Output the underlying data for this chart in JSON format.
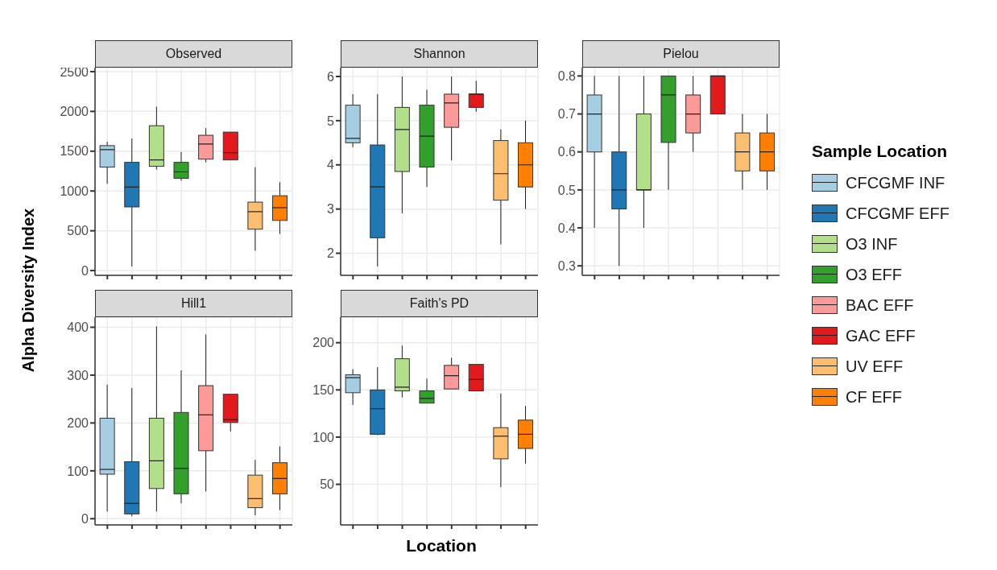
{
  "chart_data": [
    {
      "type": "box",
      "title": "Observed",
      "ylabel": "Alpha Diversity Index",
      "legend": "right",
      "legend_title": "Sample Location",
      "grid": true,
      "categories": [
        null,
        null,
        null,
        null,
        null,
        null,
        null,
        null
      ],
      "ylim": [
        -60,
        2550
      ],
      "yticks": [
        0,
        500,
        1000,
        1500,
        2000,
        2500
      ],
      "series": [
        {
          "name": "CFCGMF INF",
          "color": "#a6cee3",
          "boxes": [
            {
              "low": 1090,
              "q1": 1300,
              "median": 1520,
              "q3": 1570,
              "high": 1620
            },
            null,
            null,
            null,
            null,
            null,
            null,
            null
          ]
        },
        {
          "name": "CFCGMF EFF",
          "color": "#1f78b4",
          "boxes": [
            null,
            {
              "low": 50,
              "q1": 800,
              "median": 1050,
              "q3": 1360,
              "high": 1660
            },
            null,
            null,
            null,
            null,
            null,
            null
          ]
        },
        {
          "name": "O3 INF",
          "color": "#b2df8a",
          "boxes": [
            null,
            null,
            {
              "low": 1270,
              "q1": 1310,
              "median": 1390,
              "q3": 1820,
              "high": 2060
            },
            null,
            null,
            null,
            null,
            null
          ]
        },
        {
          "name": "O3 EFF",
          "color": "#33a02c",
          "boxes": [
            null,
            null,
            null,
            {
              "low": 1130,
              "q1": 1160,
              "median": 1240,
              "q3": 1360,
              "high": 1490
            },
            null,
            null,
            null,
            null
          ]
        },
        {
          "name": "BAC EFF",
          "color": "#fb9a99",
          "boxes": [
            null,
            null,
            null,
            null,
            {
              "low": 1360,
              "q1": 1400,
              "median": 1590,
              "q3": 1700,
              "high": 1790
            },
            null,
            null,
            null
          ]
        },
        {
          "name": "GAC EFF",
          "color": "#e31a1c",
          "boxes": [
            null,
            null,
            null,
            null,
            null,
            {
              "low": 1390,
              "q1": 1390,
              "median": 1480,
              "q3": 1740,
              "high": 1740
            },
            null,
            null
          ]
        },
        {
          "name": "UV EFF",
          "color": "#fdbf6f",
          "boxes": [
            null,
            null,
            null,
            null,
            null,
            null,
            {
              "low": 250,
              "q1": 520,
              "median": 740,
              "q3": 860,
              "high": 1300
            },
            null
          ]
        },
        {
          "name": "CF EFF",
          "color": "#ff7f00",
          "boxes": [
            null,
            null,
            null,
            null,
            null,
            null,
            null,
            {
              "low": 460,
              "q1": 630,
              "median": 790,
              "q3": 940,
              "high": 1110
            }
          ]
        }
      ]
    },
    {
      "type": "box",
      "title": "Shannon",
      "grid": true,
      "categories": [
        null,
        null,
        null,
        null,
        null,
        null,
        null,
        null
      ],
      "ylim": [
        1.5,
        6.2
      ],
      "yticks": [
        2,
        3,
        4,
        5,
        6
      ],
      "series": [
        {
          "color": "#a6cee3",
          "boxes": [
            {
              "low": 4.4,
              "q1": 4.5,
              "median": 4.6,
              "q3": 5.35,
              "high": 5.6
            },
            null,
            null,
            null,
            null,
            null,
            null,
            null
          ]
        },
        {
          "color": "#1f78b4",
          "boxes": [
            null,
            {
              "low": 1.7,
              "q1": 2.35,
              "median": 3.5,
              "q3": 4.45,
              "high": 5.6
            },
            null,
            null,
            null,
            null,
            null,
            null
          ]
        },
        {
          "color": "#b2df8a",
          "boxes": [
            null,
            null,
            {
              "low": 2.9,
              "q1": 3.85,
              "median": 4.8,
              "q3": 5.3,
              "high": 6.0
            },
            null,
            null,
            null,
            null,
            null
          ]
        },
        {
          "color": "#33a02c",
          "boxes": [
            null,
            null,
            null,
            {
              "low": 3.5,
              "q1": 3.95,
              "median": 4.65,
              "q3": 5.35,
              "high": 5.7
            },
            null,
            null,
            null,
            null
          ]
        },
        {
          "color": "#fb9a99",
          "boxes": [
            null,
            null,
            null,
            null,
            {
              "low": 4.1,
              "q1": 4.85,
              "median": 5.4,
              "q3": 5.6,
              "high": 6.0
            },
            null,
            null,
            null
          ]
        },
        {
          "color": "#e31a1c",
          "boxes": [
            null,
            null,
            null,
            null,
            null,
            {
              "low": 5.2,
              "q1": 5.3,
              "median": 5.6,
              "q3": 5.6,
              "high": 5.9
            },
            null,
            null
          ]
        },
        {
          "color": "#fdbf6f",
          "boxes": [
            null,
            null,
            null,
            null,
            null,
            null,
            {
              "low": 2.2,
              "q1": 3.2,
              "median": 3.8,
              "q3": 4.55,
              "high": 4.8
            },
            null
          ]
        },
        {
          "color": "#ff7f00",
          "boxes": [
            null,
            null,
            null,
            null,
            null,
            null,
            null,
            {
              "low": 3.0,
              "q1": 3.5,
              "median": 4.0,
              "q3": 4.5,
              "high": 5.0
            }
          ]
        }
      ]
    },
    {
      "type": "box",
      "title": "Pielou",
      "grid": true,
      "categories": [
        null,
        null,
        null,
        null,
        null,
        null,
        null,
        null
      ],
      "ylim": [
        0.275,
        0.822
      ],
      "yticks": [
        0.3,
        0.4,
        0.5,
        0.6,
        0.7,
        0.8
      ],
      "series": [
        {
          "color": "#a6cee3",
          "boxes": [
            {
              "low": 0.4,
              "q1": 0.6,
              "median": 0.7,
              "q3": 0.75,
              "high": 0.8
            },
            null,
            null,
            null,
            null,
            null,
            null,
            null
          ]
        },
        {
          "color": "#1f78b4",
          "boxes": [
            null,
            {
              "low": 0.3,
              "q1": 0.45,
              "median": 0.5,
              "q3": 0.6,
              "high": 0.8
            },
            null,
            null,
            null,
            null,
            null,
            null
          ]
        },
        {
          "color": "#b2df8a",
          "boxes": [
            null,
            null,
            {
              "low": 0.4,
              "q1": 0.5,
              "median": 0.5,
              "q3": 0.7,
              "high": 0.8
            },
            null,
            null,
            null,
            null,
            null
          ]
        },
        {
          "color": "#33a02c",
          "boxes": [
            null,
            null,
            null,
            {
              "low": 0.5,
              "q1": 0.625,
              "median": 0.75,
              "q3": 0.8,
              "high": 0.8
            },
            null,
            null,
            null,
            null
          ]
        },
        {
          "color": "#fb9a99",
          "boxes": [
            null,
            null,
            null,
            null,
            {
              "low": 0.6,
              "q1": 0.65,
              "median": 0.7,
              "q3": 0.75,
              "high": 0.8
            },
            null,
            null,
            null
          ]
        },
        {
          "color": "#e31a1c",
          "boxes": [
            null,
            null,
            null,
            null,
            null,
            {
              "low": 0.7,
              "q1": 0.7,
              "median": 0.8,
              "q3": 0.8,
              "high": 0.8
            },
            null,
            null
          ]
        },
        {
          "color": "#fdbf6f",
          "boxes": [
            null,
            null,
            null,
            null,
            null,
            null,
            {
              "low": 0.5,
              "q1": 0.55,
              "median": 0.6,
              "q3": 0.65,
              "high": 0.7
            },
            null
          ]
        },
        {
          "color": "#ff7f00",
          "boxes": [
            null,
            null,
            null,
            null,
            null,
            null,
            null,
            {
              "low": 0.5,
              "q1": 0.55,
              "median": 0.6,
              "q3": 0.65,
              "high": 0.7
            }
          ]
        }
      ]
    },
    {
      "type": "box",
      "title": "Hill1",
      "grid": true,
      "categories": [
        null,
        null,
        null,
        null,
        null,
        null,
        null,
        null
      ],
      "ylim": [
        -13,
        421
      ],
      "yticks": [
        0,
        100,
        200,
        300,
        400
      ],
      "series": [
        {
          "color": "#a6cee3",
          "boxes": [
            {
              "low": 15,
              "q1": 93,
              "median": 103,
              "q3": 210,
              "high": 280
            },
            null,
            null,
            null,
            null,
            null,
            null,
            null
          ]
        },
        {
          "color": "#1f78b4",
          "boxes": [
            null,
            {
              "low": 5,
              "q1": 10,
              "median": 32,
              "q3": 119,
              "high": 273
            },
            null,
            null,
            null,
            null,
            null,
            null
          ]
        },
        {
          "color": "#b2df8a",
          "boxes": [
            null,
            null,
            {
              "low": 15,
              "q1": 63,
              "median": 121,
              "q3": 210,
              "high": 402
            },
            null,
            null,
            null,
            null,
            null
          ]
        },
        {
          "color": "#33a02c",
          "boxes": [
            null,
            null,
            null,
            {
              "low": 32,
              "q1": 52,
              "median": 105,
              "q3": 222,
              "high": 310
            },
            null,
            null,
            null,
            null
          ]
        },
        {
          "color": "#fb9a99",
          "boxes": [
            null,
            null,
            null,
            null,
            {
              "low": 57,
              "q1": 142,
              "median": 217,
              "q3": 278,
              "high": 385
            },
            null,
            null,
            null
          ]
        },
        {
          "color": "#e31a1c",
          "boxes": [
            null,
            null,
            null,
            null,
            null,
            {
              "low": 182,
              "q1": 201,
              "median": 207,
              "q3": 260,
              "high": 260
            },
            null,
            null
          ]
        },
        {
          "color": "#fdbf6f",
          "boxes": [
            null,
            null,
            null,
            null,
            null,
            null,
            {
              "low": 7,
              "q1": 23,
              "median": 42,
              "q3": 91,
              "high": 123
            },
            null
          ]
        },
        {
          "color": "#ff7f00",
          "boxes": [
            null,
            null,
            null,
            null,
            null,
            null,
            null,
            {
              "low": 18,
              "q1": 52,
              "median": 84,
              "q3": 117,
              "high": 151
            }
          ]
        }
      ]
    },
    {
      "type": "box",
      "title": "Faith's PD",
      "xlabel": "Location",
      "grid": true,
      "categories": [
        null,
        null,
        null,
        null,
        null,
        null,
        null,
        null
      ],
      "ylim": [
        7,
        227
      ],
      "yticks": [
        50,
        100,
        150,
        200
      ],
      "series": [
        {
          "color": "#a6cee3",
          "boxes": [
            {
              "low": 134,
              "q1": 147,
              "median": 163,
              "q3": 166,
              "high": 172
            },
            null,
            null,
            null,
            null,
            null,
            null,
            null
          ]
        },
        {
          "color": "#1f78b4",
          "boxes": [
            null,
            {
              "low": 102,
              "q1": 103,
              "median": 130,
              "q3": 150,
              "high": 174
            },
            null,
            null,
            null,
            null,
            null,
            null
          ]
        },
        {
          "color": "#b2df8a",
          "boxes": [
            null,
            null,
            {
              "low": 142,
              "q1": 149,
              "median": 153,
              "q3": 183,
              "high": 197
            },
            null,
            null,
            null,
            null,
            null
          ]
        },
        {
          "color": "#33a02c",
          "boxes": [
            null,
            null,
            null,
            {
              "low": 136,
              "q1": 136,
              "median": 141,
              "q3": 149,
              "high": 162
            },
            null,
            null,
            null,
            null
          ]
        },
        {
          "color": "#fb9a99",
          "boxes": [
            null,
            null,
            null,
            null,
            {
              "low": 151,
              "q1": 151,
              "median": 165,
              "q3": 176,
              "high": 184
            },
            null,
            null,
            null
          ]
        },
        {
          "color": "#e31a1c",
          "boxes": [
            null,
            null,
            null,
            null,
            null,
            {
              "low": 149,
              "q1": 149,
              "median": 161,
              "q3": 177,
              "high": 177
            },
            null,
            null
          ]
        },
        {
          "color": "#fdbf6f",
          "boxes": [
            null,
            null,
            null,
            null,
            null,
            null,
            {
              "low": 47,
              "q1": 77,
              "median": 101,
              "q3": 110,
              "high": 146
            },
            null
          ]
        },
        {
          "color": "#ff7f00",
          "boxes": [
            null,
            null,
            null,
            null,
            null,
            null,
            null,
            {
              "low": 72,
              "q1": 88,
              "median": 103,
              "q3": 118,
              "high": 133
            }
          ]
        }
      ]
    }
  ]
}
